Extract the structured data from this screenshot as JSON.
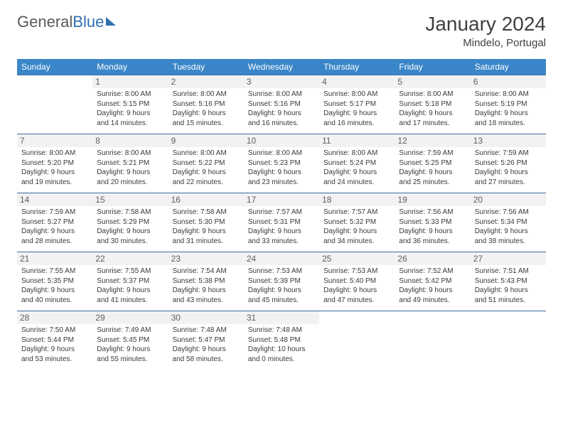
{
  "logo": {
    "text1": "General",
    "text2": "Blue"
  },
  "title": "January 2024",
  "location": "Mindelo, Portugal",
  "colors": {
    "header_bg": "#3a86c8",
    "header_fg": "#ffffff",
    "rule": "#3a6da0",
    "daynum_bg": "#f2f2f2",
    "text": "#404040"
  },
  "weekdays": [
    "Sunday",
    "Monday",
    "Tuesday",
    "Wednesday",
    "Thursday",
    "Friday",
    "Saturday"
  ],
  "weeks": [
    [
      {
        "n": "",
        "sunrise": "",
        "sunset": "",
        "daylight": ""
      },
      {
        "n": "1",
        "sunrise": "Sunrise: 8:00 AM",
        "sunset": "Sunset: 5:15 PM",
        "daylight": "Daylight: 9 hours and 14 minutes."
      },
      {
        "n": "2",
        "sunrise": "Sunrise: 8:00 AM",
        "sunset": "Sunset: 5:16 PM",
        "daylight": "Daylight: 9 hours and 15 minutes."
      },
      {
        "n": "3",
        "sunrise": "Sunrise: 8:00 AM",
        "sunset": "Sunset: 5:16 PM",
        "daylight": "Daylight: 9 hours and 16 minutes."
      },
      {
        "n": "4",
        "sunrise": "Sunrise: 8:00 AM",
        "sunset": "Sunset: 5:17 PM",
        "daylight": "Daylight: 9 hours and 16 minutes."
      },
      {
        "n": "5",
        "sunrise": "Sunrise: 8:00 AM",
        "sunset": "Sunset: 5:18 PM",
        "daylight": "Daylight: 9 hours and 17 minutes."
      },
      {
        "n": "6",
        "sunrise": "Sunrise: 8:00 AM",
        "sunset": "Sunset: 5:19 PM",
        "daylight": "Daylight: 9 hours and 18 minutes."
      }
    ],
    [
      {
        "n": "7",
        "sunrise": "Sunrise: 8:00 AM",
        "sunset": "Sunset: 5:20 PM",
        "daylight": "Daylight: 9 hours and 19 minutes."
      },
      {
        "n": "8",
        "sunrise": "Sunrise: 8:00 AM",
        "sunset": "Sunset: 5:21 PM",
        "daylight": "Daylight: 9 hours and 20 minutes."
      },
      {
        "n": "9",
        "sunrise": "Sunrise: 8:00 AM",
        "sunset": "Sunset: 5:22 PM",
        "daylight": "Daylight: 9 hours and 22 minutes."
      },
      {
        "n": "10",
        "sunrise": "Sunrise: 8:00 AM",
        "sunset": "Sunset: 5:23 PM",
        "daylight": "Daylight: 9 hours and 23 minutes."
      },
      {
        "n": "11",
        "sunrise": "Sunrise: 8:00 AM",
        "sunset": "Sunset: 5:24 PM",
        "daylight": "Daylight: 9 hours and 24 minutes."
      },
      {
        "n": "12",
        "sunrise": "Sunrise: 7:59 AM",
        "sunset": "Sunset: 5:25 PM",
        "daylight": "Daylight: 9 hours and 25 minutes."
      },
      {
        "n": "13",
        "sunrise": "Sunrise: 7:59 AM",
        "sunset": "Sunset: 5:26 PM",
        "daylight": "Daylight: 9 hours and 27 minutes."
      }
    ],
    [
      {
        "n": "14",
        "sunrise": "Sunrise: 7:59 AM",
        "sunset": "Sunset: 5:27 PM",
        "daylight": "Daylight: 9 hours and 28 minutes."
      },
      {
        "n": "15",
        "sunrise": "Sunrise: 7:58 AM",
        "sunset": "Sunset: 5:29 PM",
        "daylight": "Daylight: 9 hours and 30 minutes."
      },
      {
        "n": "16",
        "sunrise": "Sunrise: 7:58 AM",
        "sunset": "Sunset: 5:30 PM",
        "daylight": "Daylight: 9 hours and 31 minutes."
      },
      {
        "n": "17",
        "sunrise": "Sunrise: 7:57 AM",
        "sunset": "Sunset: 5:31 PM",
        "daylight": "Daylight: 9 hours and 33 minutes."
      },
      {
        "n": "18",
        "sunrise": "Sunrise: 7:57 AM",
        "sunset": "Sunset: 5:32 PM",
        "daylight": "Daylight: 9 hours and 34 minutes."
      },
      {
        "n": "19",
        "sunrise": "Sunrise: 7:56 AM",
        "sunset": "Sunset: 5:33 PM",
        "daylight": "Daylight: 9 hours and 36 minutes."
      },
      {
        "n": "20",
        "sunrise": "Sunrise: 7:56 AM",
        "sunset": "Sunset: 5:34 PM",
        "daylight": "Daylight: 9 hours and 38 minutes."
      }
    ],
    [
      {
        "n": "21",
        "sunrise": "Sunrise: 7:55 AM",
        "sunset": "Sunset: 5:35 PM",
        "daylight": "Daylight: 9 hours and 40 minutes."
      },
      {
        "n": "22",
        "sunrise": "Sunrise: 7:55 AM",
        "sunset": "Sunset: 5:37 PM",
        "daylight": "Daylight: 9 hours and 41 minutes."
      },
      {
        "n": "23",
        "sunrise": "Sunrise: 7:54 AM",
        "sunset": "Sunset: 5:38 PM",
        "daylight": "Daylight: 9 hours and 43 minutes."
      },
      {
        "n": "24",
        "sunrise": "Sunrise: 7:53 AM",
        "sunset": "Sunset: 5:39 PM",
        "daylight": "Daylight: 9 hours and 45 minutes."
      },
      {
        "n": "25",
        "sunrise": "Sunrise: 7:53 AM",
        "sunset": "Sunset: 5:40 PM",
        "daylight": "Daylight: 9 hours and 47 minutes."
      },
      {
        "n": "26",
        "sunrise": "Sunrise: 7:52 AM",
        "sunset": "Sunset: 5:42 PM",
        "daylight": "Daylight: 9 hours and 49 minutes."
      },
      {
        "n": "27",
        "sunrise": "Sunrise: 7:51 AM",
        "sunset": "Sunset: 5:43 PM",
        "daylight": "Daylight: 9 hours and 51 minutes."
      }
    ],
    [
      {
        "n": "28",
        "sunrise": "Sunrise: 7:50 AM",
        "sunset": "Sunset: 5:44 PM",
        "daylight": "Daylight: 9 hours and 53 minutes."
      },
      {
        "n": "29",
        "sunrise": "Sunrise: 7:49 AM",
        "sunset": "Sunset: 5:45 PM",
        "daylight": "Daylight: 9 hours and 55 minutes."
      },
      {
        "n": "30",
        "sunrise": "Sunrise: 7:48 AM",
        "sunset": "Sunset: 5:47 PM",
        "daylight": "Daylight: 9 hours and 58 minutes."
      },
      {
        "n": "31",
        "sunrise": "Sunrise: 7:48 AM",
        "sunset": "Sunset: 5:48 PM",
        "daylight": "Daylight: 10 hours and 0 minutes."
      },
      {
        "n": "",
        "sunrise": "",
        "sunset": "",
        "daylight": ""
      },
      {
        "n": "",
        "sunrise": "",
        "sunset": "",
        "daylight": ""
      },
      {
        "n": "",
        "sunrise": "",
        "sunset": "",
        "daylight": ""
      }
    ]
  ]
}
